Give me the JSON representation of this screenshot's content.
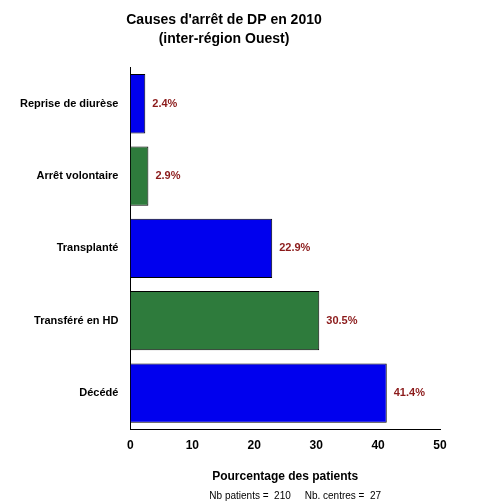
{
  "chart_data": {
    "type": "bar",
    "orientation": "horizontal",
    "title": "Causes d'arrêt de DP en 2010",
    "subtitle": "(inter-région Ouest)",
    "x_label": "Pourcentage des patients",
    "annotation": "Nb patients =  210     Nb. centres =  27",
    "categories": [
      "Reprise de diurèse",
      "Arrêt volontaire",
      "Transplanté",
      "Transféré en HD",
      "Décédé"
    ],
    "values": [
      2.4,
      2.9,
      22.9,
      30.5,
      41.4
    ],
    "value_labels": [
      "2.4%",
      "2.9%",
      "22.9%",
      "30.5%",
      "41.4%"
    ],
    "colors": [
      "#0000EE",
      "#2E7B3C",
      "#0000EE",
      "#2E7B3C",
      "#0000EE"
    ],
    "xlim": [
      0,
      50
    ],
    "xticks": [
      0,
      10,
      20,
      30,
      40,
      50
    ],
    "grid": false,
    "data_labels": true
  }
}
